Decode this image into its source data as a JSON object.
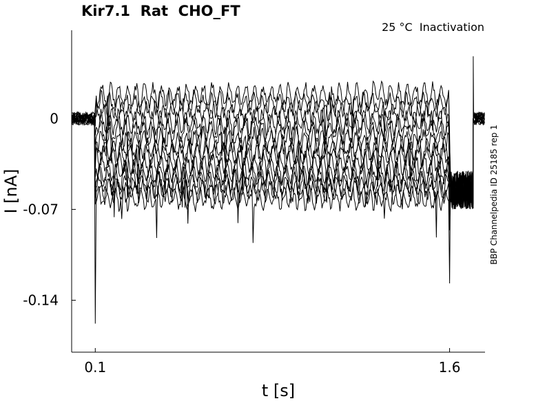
{
  "chart_data": {
    "type": "line",
    "title": "Kir7.1  Rat  CHO_FT",
    "annotation": "25 °C  Inactivation",
    "side_label": "BBP Channelpedia ID 25185 rep 1",
    "xlabel": "t [s]",
    "ylabel": "I [nA]",
    "xlim": [
      -0.0,
      1.75
    ],
    "ylim": [
      -0.18,
      0.068
    ],
    "x_ticks": [
      0.1,
      1.6
    ],
    "x_tick_labels": [
      "0.1",
      "1.6"
    ],
    "y_ticks": [
      0,
      -0.07,
      -0.14
    ],
    "y_tick_labels": [
      "0",
      "-0.07",
      "-0.14"
    ],
    "grid": false,
    "legend": "none",
    "line_color": "#000000",
    "step_start_s": 0.1,
    "step_end_s": 1.6,
    "sweep_count": 14,
    "sweep_mean_levels_nA": [
      0.018,
      0.011,
      0.004,
      -0.003,
      -0.01,
      -0.017,
      -0.023,
      -0.029,
      -0.035,
      -0.041,
      -0.046,
      -0.051,
      -0.056,
      -0.061
    ],
    "baseline_level_nA": 0.0,
    "tail_level_nA": -0.055,
    "onset_spike_peak_nA": -0.158,
    "offset_spike_peak_nA": -0.127,
    "end_spike_peak_nA": 0.048
  }
}
